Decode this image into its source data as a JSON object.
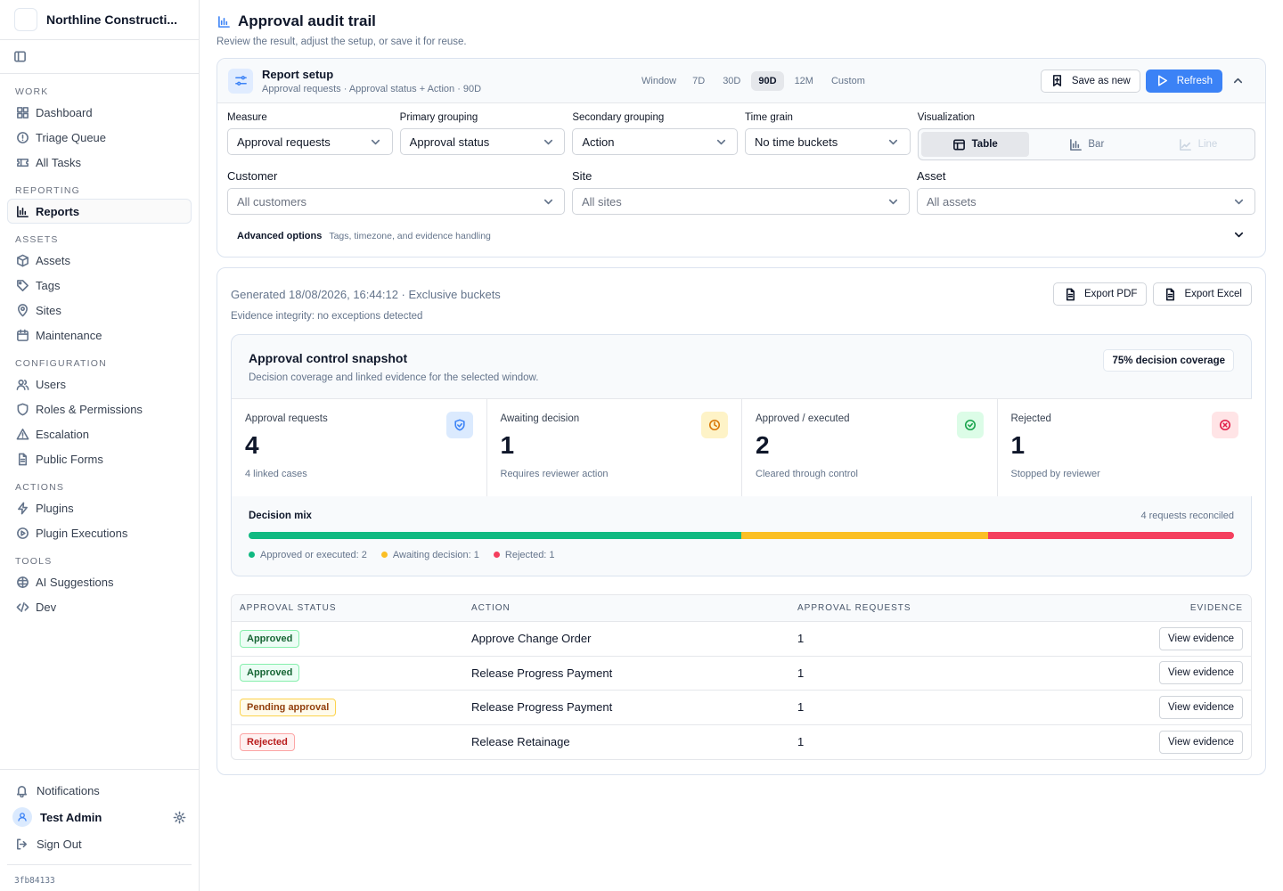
{
  "sidebar": {
    "org_name": "Northline Constructi...",
    "sections": [
      {
        "title": "WORK",
        "items": [
          {
            "label": "Dashboard",
            "icon": "dashboard-icon"
          },
          {
            "label": "Triage Queue",
            "icon": "alert-circle-icon"
          },
          {
            "label": "All Tasks",
            "icon": "ticket-icon"
          }
        ]
      },
      {
        "title": "REPORTING",
        "items": [
          {
            "label": "Reports",
            "icon": "bar-chart-icon",
            "active": true
          }
        ]
      },
      {
        "title": "ASSETS",
        "items": [
          {
            "label": "Assets",
            "icon": "box-icon"
          },
          {
            "label": "Tags",
            "icon": "tag-icon"
          },
          {
            "label": "Sites",
            "icon": "map-pin-icon"
          },
          {
            "label": "Maintenance",
            "icon": "calendar-icon"
          }
        ]
      },
      {
        "title": "CONFIGURATION",
        "items": [
          {
            "label": "Users",
            "icon": "users-icon"
          },
          {
            "label": "Roles & Permissions",
            "icon": "shield-icon"
          },
          {
            "label": "Escalation",
            "icon": "warning-triangle-icon"
          },
          {
            "label": "Public Forms",
            "icon": "file-text-icon"
          }
        ]
      },
      {
        "title": "ACTIONS",
        "items": [
          {
            "label": "Plugins",
            "icon": "zap-icon"
          },
          {
            "label": "Plugin Executions",
            "icon": "play-circle-icon"
          }
        ]
      },
      {
        "title": "TOOLS",
        "items": [
          {
            "label": "AI Suggestions",
            "icon": "brain-icon"
          },
          {
            "label": "Dev",
            "icon": "code-icon"
          }
        ]
      }
    ],
    "notifications_label": "Notifications",
    "user_name": "Test Admin",
    "sign_out_label": "Sign Out",
    "build_id": "3fb84133"
  },
  "page": {
    "title": "Approval audit trail",
    "subtitle": "Review the result, adjust the setup, or save it for reuse."
  },
  "setup": {
    "title": "Report setup",
    "summary": "Approval requests · Approval status + Action · 90D",
    "window_label": "Window",
    "windows": [
      "7D",
      "30D",
      "90D",
      "12M",
      "Custom"
    ],
    "selected_window": "90D",
    "save_label": "Save as new",
    "refresh_label": "Refresh",
    "measure_label": "Measure",
    "measure_value": "Approval requests",
    "primary_label": "Primary grouping",
    "primary_value": "Approval status",
    "secondary_label": "Secondary grouping",
    "secondary_value": "Action",
    "grain_label": "Time grain",
    "grain_value": "No time buckets",
    "viz_label": "Visualization",
    "viz_options": [
      "Table",
      "Bar",
      "Line"
    ],
    "viz_selected": "Table",
    "customer_label": "Customer",
    "customer_placeholder": "All customers",
    "site_label": "Site",
    "site_placeholder": "All sites",
    "asset_label": "Asset",
    "asset_placeholder": "All assets",
    "advanced_title": "Advanced options",
    "advanced_sub": "Tags, timezone, and evidence handling"
  },
  "results": {
    "generated": "Generated 18/08/2026, 16:44:12 · Exclusive buckets",
    "integrity": "Evidence integrity: no exceptions detected",
    "export_pdf": "Export PDF",
    "export_excel": "Export Excel",
    "snapshot": {
      "title": "Approval control snapshot",
      "subtitle": "Decision coverage and linked evidence for the selected window.",
      "coverage": "75% decision coverage",
      "kpis": [
        {
          "label": "Approval requests",
          "value": "4",
          "note": "4 linked cases",
          "icon": "shield-check-icon",
          "color": "#3b82f6",
          "bg": "#dbeafe"
        },
        {
          "label": "Awaiting decision",
          "value": "1",
          "note": "Requires reviewer action",
          "icon": "clock-icon",
          "color": "#d97706",
          "bg": "#fef3c7"
        },
        {
          "label": "Approved / executed",
          "value": "2",
          "note": "Cleared through control",
          "icon": "check-circle-icon",
          "color": "#16a34a",
          "bg": "#dcfce7"
        },
        {
          "label": "Rejected",
          "value": "1",
          "note": "Stopped by reviewer",
          "icon": "x-circle-icon",
          "color": "#e11d48",
          "bg": "#ffe4e6"
        }
      ],
      "mix_title": "Decision mix",
      "mix_reconciled": "4 requests reconciled",
      "mix": [
        {
          "label": "Approved or executed: 2",
          "value": 2,
          "color": "#10b981"
        },
        {
          "label": "Awaiting decision: 1",
          "value": 1,
          "color": "#fbbf24"
        },
        {
          "label": "Rejected: 1",
          "value": 1,
          "color": "#f43f5e"
        }
      ]
    },
    "table": {
      "headers": [
        "APPROVAL STATUS",
        "ACTION",
        "APPROVAL REQUESTS",
        "EVIDENCE"
      ],
      "rows": [
        {
          "status": "Approved",
          "status_kind": "approved",
          "action": "Approve Change Order",
          "count": "1",
          "evidence": "View evidence"
        },
        {
          "status": "Approved",
          "status_kind": "approved",
          "action": "Release Progress Payment",
          "count": "1",
          "evidence": "View evidence"
        },
        {
          "status": "Pending approval",
          "status_kind": "pending",
          "action": "Release Progress Payment",
          "count": "1",
          "evidence": "View evidence"
        },
        {
          "status": "Rejected",
          "status_kind": "rejected",
          "action": "Release Retainage",
          "count": "1",
          "evidence": "View evidence"
        }
      ]
    }
  }
}
